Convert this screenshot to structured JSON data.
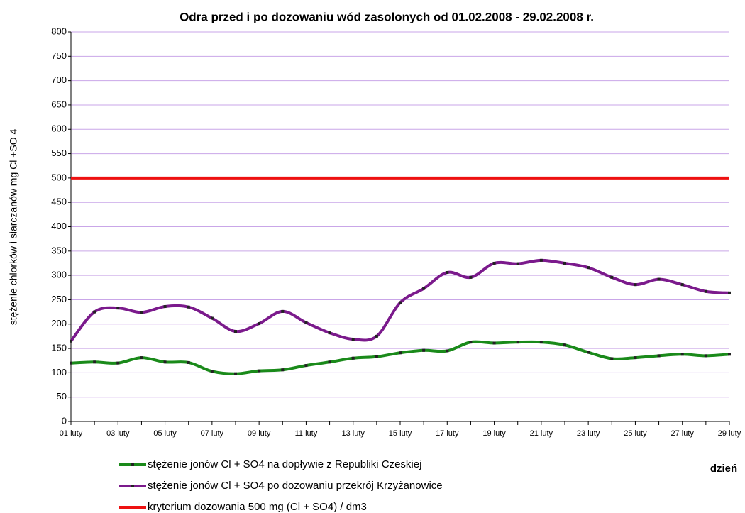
{
  "chart_data": {
    "type": "line",
    "title": "Odra przed i po dozowaniu wód zasolonych od 01.02.2008 - 29.02.2008 r.",
    "y_label": "stężenie chlorków i siarczanów mg Cl +SO 4",
    "x_label": "dzień",
    "categories": [
      "01 luty",
      null,
      "03 luty",
      null,
      "05 luty",
      null,
      "07 luty",
      null,
      "09 luty",
      null,
      "11 luty",
      null,
      "13 luty",
      null,
      "15 luty",
      null,
      "17 luty",
      null,
      "19 luty",
      null,
      "21 luty",
      null,
      "23 luty",
      null,
      "25 luty",
      null,
      "27 luty",
      null,
      "29 luty"
    ],
    "series": [
      {
        "name": "stężenie jonów Cl + SO4 na dopływie z Republiki Czeskiej",
        "color": "#1a8a1a",
        "marker": true,
        "values": [
          120,
          122,
          120,
          131,
          122,
          121,
          103,
          98,
          104,
          106,
          115,
          122,
          130,
          133,
          141,
          146,
          145,
          163,
          161,
          163,
          163,
          157,
          142,
          129,
          131,
          135,
          138,
          135,
          138
        ]
      },
      {
        "name": "stężenie jonów Cl + SO4 po dozowaniu przekrój Krzyżanowice",
        "color": "#7b1a8c",
        "marker": true,
        "values": [
          165,
          225,
          233,
          224,
          236,
          235,
          212,
          185,
          201,
          226,
          203,
          182,
          169,
          175,
          244,
          273,
          306,
          296,
          325,
          324,
          331,
          325,
          316,
          296,
          281,
          292,
          281,
          267,
          264
        ]
      },
      {
        "name": "kryterium dozowania 500 mg (Cl + SO4) / dm3",
        "color": "#ee1111",
        "marker": false,
        "values": [
          500,
          500,
          500,
          500,
          500,
          500,
          500,
          500,
          500,
          500,
          500,
          500,
          500,
          500,
          500,
          500,
          500,
          500,
          500,
          500,
          500,
          500,
          500,
          500,
          500,
          500,
          500,
          500,
          500
        ]
      }
    ],
    "ylim": [
      0,
      800
    ],
    "yticks": [
      0,
      50,
      100,
      150,
      200,
      250,
      300,
      350,
      400,
      450,
      500,
      550,
      600,
      650,
      700,
      750,
      800
    ],
    "grid": true,
    "smooth": true,
    "legend": "bottom"
  }
}
